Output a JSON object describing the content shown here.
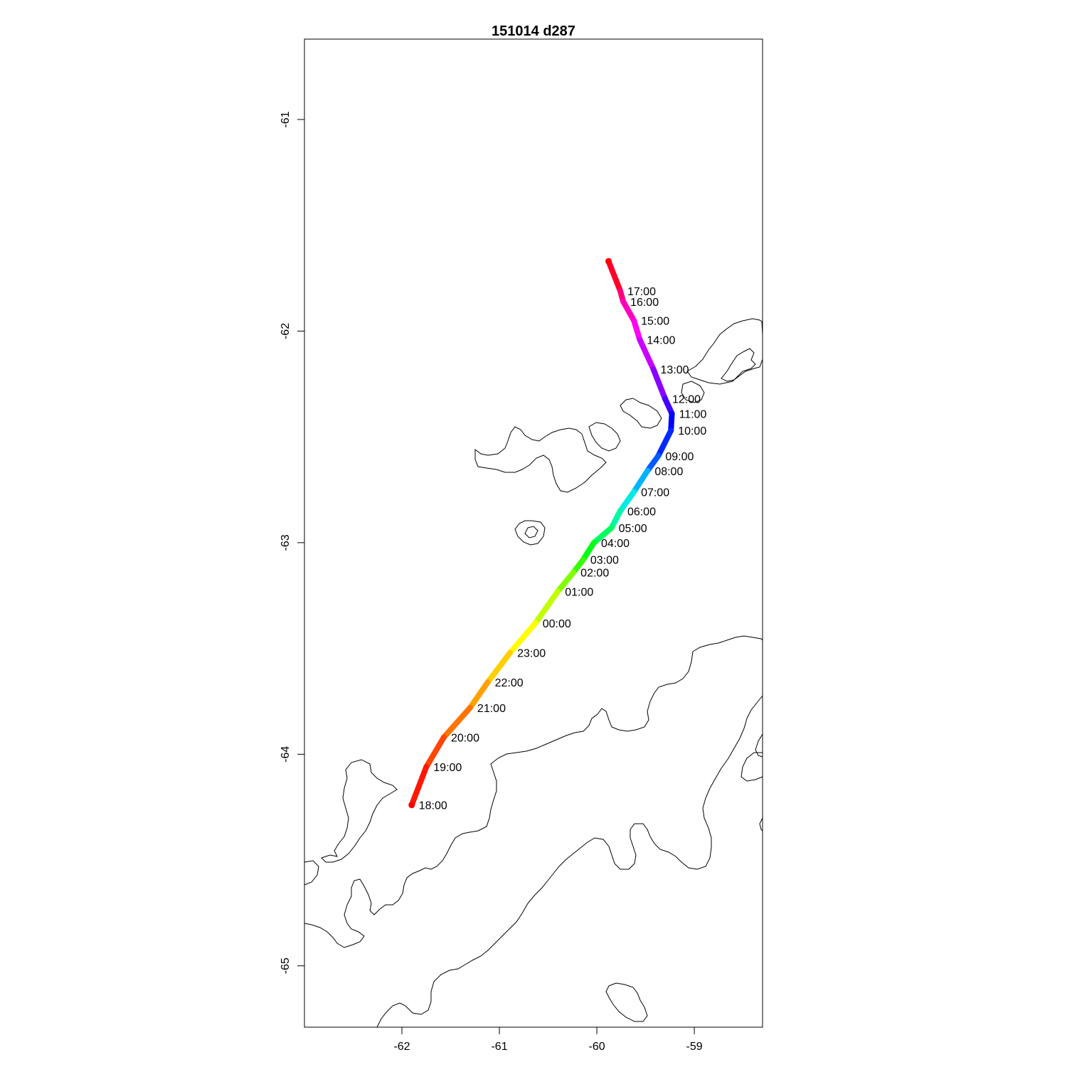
{
  "title": "151014   d287",
  "chart_data": {
    "type": "line",
    "title": "151014   d287",
    "xlabel": "",
    "ylabel": "",
    "xlim": [
      -63.0,
      -58.3
    ],
    "ylim": [
      -65.29,
      -60.62
    ],
    "x_ticks": [
      -62,
      -61,
      -60,
      -59
    ],
    "y_ticks": [
      -61,
      -62,
      -63,
      -64,
      -65
    ],
    "grid": false,
    "track": [
      {
        "time": "",
        "x": -59.88,
        "y": -61.67
      },
      {
        "time": "17:00",
        "x": -59.76,
        "y": -61.81
      },
      {
        "time": "16:00",
        "x": -59.73,
        "y": -61.86
      },
      {
        "time": "15:00",
        "x": -59.62,
        "y": -61.95
      },
      {
        "time": "14:00",
        "x": -59.56,
        "y": -62.04
      },
      {
        "time": "13:00",
        "x": -59.42,
        "y": -62.18
      },
      {
        "time": "12:00",
        "x": -59.3,
        "y": -62.32
      },
      {
        "time": "11:00",
        "x": -59.23,
        "y": -62.39
      },
      {
        "time": "10:00",
        "x": -59.24,
        "y": -62.47
      },
      {
        "time": "09:00",
        "x": -59.37,
        "y": -62.59
      },
      {
        "time": "08:00",
        "x": -59.48,
        "y": -62.66
      },
      {
        "time": "07:00",
        "x": -59.62,
        "y": -62.76
      },
      {
        "time": "06:00",
        "x": -59.76,
        "y": -62.85
      },
      {
        "time": "05:00",
        "x": -59.85,
        "y": -62.93
      },
      {
        "time": "04:00",
        "x": -60.03,
        "y": -63.0
      },
      {
        "time": "03:00",
        "x": -60.14,
        "y": -63.08
      },
      {
        "time": "02:00",
        "x": -60.24,
        "y": -63.14
      },
      {
        "time": "01:00",
        "x": -60.4,
        "y": -63.23
      },
      {
        "time": "00:00",
        "x": -60.63,
        "y": -63.38
      },
      {
        "time": "23:00",
        "x": -60.89,
        "y": -63.52
      },
      {
        "time": "22:00",
        "x": -61.12,
        "y": -63.66
      },
      {
        "time": "21:00",
        "x": -61.3,
        "y": -63.78
      },
      {
        "time": "20:00",
        "x": -61.57,
        "y": -63.92
      },
      {
        "time": "19:00",
        "x": -61.75,
        "y": -64.06
      },
      {
        "time": "18:00",
        "x": -61.9,
        "y": -64.24
      }
    ],
    "track_colors": [
      "#ff0000",
      "#ff0099",
      "#ff00ff",
      "#8800ff",
      "#0000ff",
      "#0044ff",
      "#00e5ff",
      "#00ff88",
      "#00ff00",
      "#88ff00",
      "#ffff00",
      "#ffaa00",
      "#ff5500",
      "#ff0000"
    ],
    "coast_color": "#000000"
  }
}
